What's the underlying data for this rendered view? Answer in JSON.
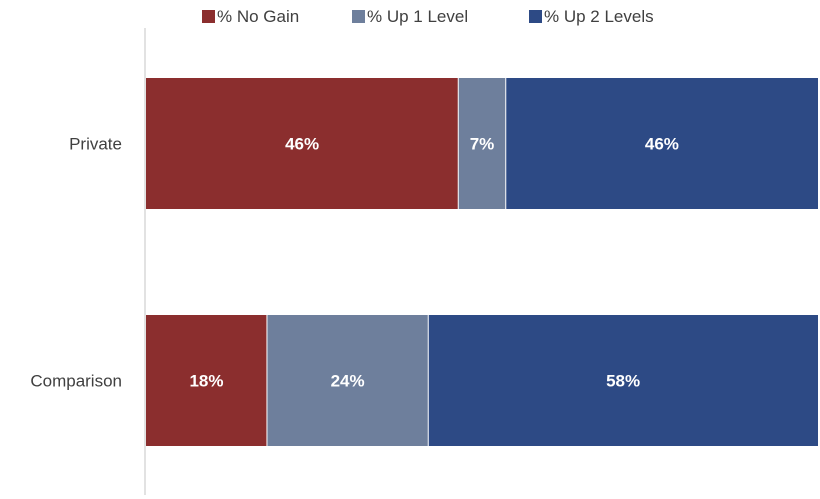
{
  "chart_data": {
    "type": "bar",
    "orientation": "horizontal",
    "stacked": true,
    "categories": [
      "Private",
      "Comparison"
    ],
    "series": [
      {
        "name": "% No Gain",
        "values": [
          46,
          18
        ],
        "labels": [
          "46%",
          "18%"
        ],
        "color": "#8B2E2E"
      },
      {
        "name": "% Up 1 Level",
        "values": [
          7,
          24
        ],
        "labels": [
          "7%",
          "24%"
        ],
        "color": "#6E7F9C"
      },
      {
        "name": "% Up 2 Levels",
        "values": [
          46,
          58
        ],
        "labels": [
          "46%",
          "58%"
        ],
        "color": "#2D4A85"
      }
    ],
    "xlim": [
      0,
      100
    ],
    "legend_position": "top",
    "grid": false,
    "title": "",
    "xlabel": "",
    "ylabel": ""
  }
}
